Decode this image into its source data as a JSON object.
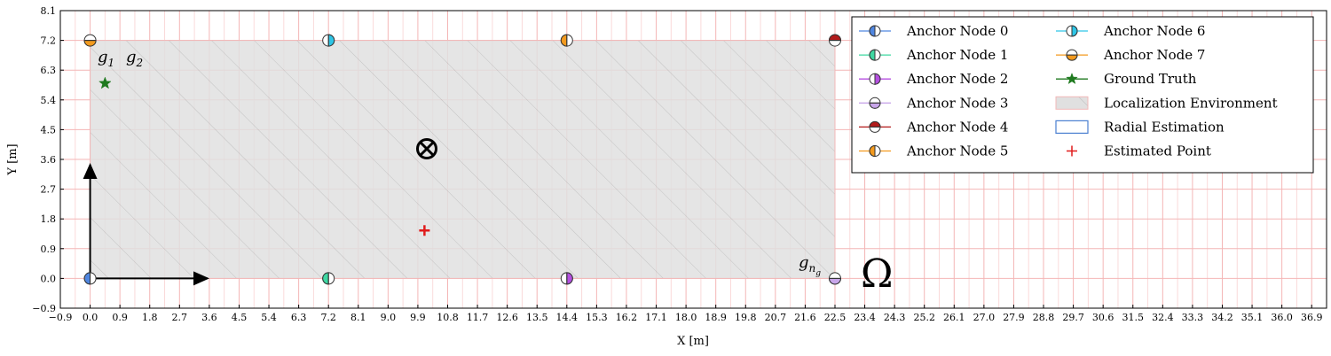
{
  "chart_data": {
    "type": "scatter",
    "xlabel": "X [m]",
    "ylabel": "Y [m]",
    "xlim": [
      -0.9,
      37.35
    ],
    "ylim": [
      -0.9,
      8.1
    ],
    "x_ticks": [
      "−0.9",
      "0.0",
      "0.9",
      "1.8",
      "2.7",
      "3.6",
      "4.5",
      "5.4",
      "6.3",
      "7.2",
      "8.1",
      "9.0",
      "9.9",
      "10.8",
      "11.7",
      "12.6",
      "13.5",
      "14.4",
      "15.3",
      "16.2",
      "17.1",
      "18.0",
      "18.9",
      "19.8",
      "20.7",
      "21.6",
      "22.5",
      "23.4",
      "24.3",
      "25.2",
      "26.1",
      "27.0",
      "27.9",
      "28.8",
      "29.7",
      "30.6",
      "31.5",
      "32.4",
      "33.3",
      "34.2",
      "35.1",
      "36.0",
      "36.9"
    ],
    "y_ticks": [
      "−0.9",
      "0.0",
      "0.9",
      "1.8",
      "2.7",
      "3.6",
      "4.5",
      "5.4",
      "6.3",
      "7.2",
      "8.1"
    ],
    "grid": true,
    "grid_color": "#f4b6b6",
    "legend_position": "top-right",
    "localization_environment": {
      "x_range": [
        0.0,
        22.5
      ],
      "y_range": [
        0.0,
        7.2
      ],
      "fill": "#e0e0e0",
      "hatch": "#bdbdbd",
      "label": "Localization Environment"
    },
    "anchors": [
      {
        "name": "Anchor Node 0",
        "x": 0.0,
        "y": 0.0,
        "color": "#4f86e0",
        "split": "left"
      },
      {
        "name": "Anchor Node 1",
        "x": 7.2,
        "y": 0.0,
        "color": "#3fd8a2",
        "split": "left"
      },
      {
        "name": "Anchor Node 2",
        "x": 14.4,
        "y": 0.0,
        "color": "#b44fe0",
        "split": "right"
      },
      {
        "name": "Anchor Node 3",
        "x": 22.5,
        "y": 0.0,
        "color": "#c9a6ea",
        "split": "bottom"
      },
      {
        "name": "Anchor Node 4",
        "x": 22.5,
        "y": 7.2,
        "color": "#b21a1a",
        "split": "top"
      },
      {
        "name": "Anchor Node 5",
        "x": 14.4,
        "y": 7.2,
        "color": "#f39a1e",
        "split": "left"
      },
      {
        "name": "Anchor Node 6",
        "x": 7.2,
        "y": 7.2,
        "color": "#2ec5e6",
        "split": "right"
      },
      {
        "name": "Anchor Node 7",
        "x": 0.0,
        "y": 7.2,
        "color": "#f39a1e",
        "split": "bottom"
      }
    ],
    "ground_truth": {
      "name": "Ground Truth",
      "x": 0.45,
      "y": 5.9,
      "color": "#1f7a1f"
    },
    "radial_estimation": {
      "name": "Radial Estimation",
      "color": "#4a7fd0"
    },
    "estimated_point": {
      "name": "Estimated Point",
      "x": 10.1,
      "y": 1.45,
      "color": "#e01b1b"
    },
    "annotations": {
      "g1": "g",
      "g1_sub": "1",
      "g2": "g",
      "g2_sub": "2",
      "gng": "g",
      "gng_sub": "n",
      "gng_subsub": "g",
      "omega": "Ω"
    }
  }
}
